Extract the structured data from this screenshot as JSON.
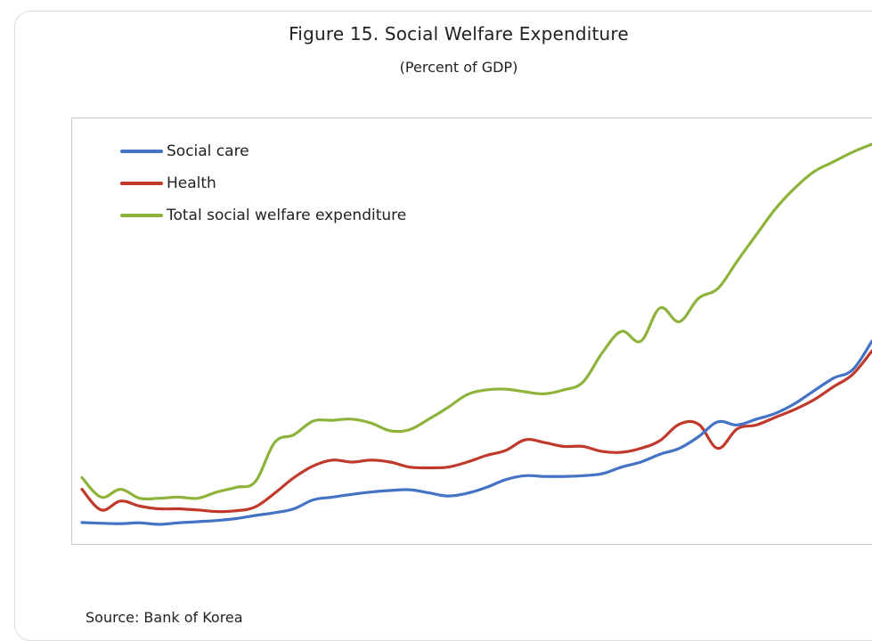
{
  "chart_data": {
    "type": "line",
    "title": "Figure 15. Social Welfare Expenditure",
    "subtitle": "(Percent of GDP)",
    "xlabel": "",
    "ylabel": "",
    "grid": false,
    "legend_position": "top-left",
    "x": [
      1,
      2,
      3,
      4,
      5,
      6,
      7,
      8,
      9,
      10,
      11,
      12,
      13,
      14,
      15,
      16,
      17,
      18,
      19,
      20,
      21,
      22,
      23,
      24,
      25,
      26,
      27,
      28,
      29,
      30,
      31,
      32,
      33,
      34,
      35,
      36,
      37,
      38,
      39,
      40,
      41,
      42
    ],
    "ylim": [
      0,
      10
    ],
    "series": [
      {
        "name": "Social care",
        "color": "#4472c4",
        "values": [
          0.3,
          0.28,
          0.27,
          0.29,
          0.25,
          0.29,
          0.32,
          0.35,
          0.4,
          0.48,
          0.55,
          0.65,
          0.88,
          0.95,
          1.02,
          1.08,
          1.12,
          1.14,
          1.06,
          0.98,
          1.05,
          1.2,
          1.4,
          1.5,
          1.48,
          1.48,
          1.5,
          1.55,
          1.72,
          1.85,
          2.05,
          2.2,
          2.5,
          2.88,
          2.8,
          2.95,
          3.1,
          3.35,
          3.68,
          4.0,
          4.22,
          4.95
        ]
      },
      {
        "name": "Health",
        "color": "#c0392b",
        "values": [
          1.15,
          0.62,
          0.85,
          0.72,
          0.65,
          0.65,
          0.62,
          0.58,
          0.6,
          0.7,
          1.05,
          1.45,
          1.75,
          1.9,
          1.85,
          1.9,
          1.85,
          1.72,
          1.7,
          1.72,
          1.85,
          2.02,
          2.15,
          2.42,
          2.35,
          2.25,
          2.25,
          2.12,
          2.1,
          2.2,
          2.4,
          2.82,
          2.82,
          2.2,
          2.7,
          2.8,
          3.0,
          3.2,
          3.45,
          3.78,
          4.1,
          4.7
        ]
      },
      {
        "name": "Total social welfare expenditure",
        "color": "#8db33a",
        "values": [
          1.45,
          0.95,
          1.15,
          0.92,
          0.92,
          0.95,
          0.92,
          1.08,
          1.2,
          1.35,
          2.35,
          2.55,
          2.9,
          2.92,
          2.95,
          2.85,
          2.65,
          2.68,
          2.95,
          3.25,
          3.58,
          3.7,
          3.72,
          3.65,
          3.6,
          3.7,
          3.9,
          4.65,
          5.2,
          4.95,
          5.8,
          5.45,
          6.05,
          6.3,
          7.0,
          7.68,
          8.35,
          8.88,
          9.3,
          9.55,
          9.8,
          10.0
        ]
      }
    ]
  },
  "source": "Source: Bank of Korea"
}
